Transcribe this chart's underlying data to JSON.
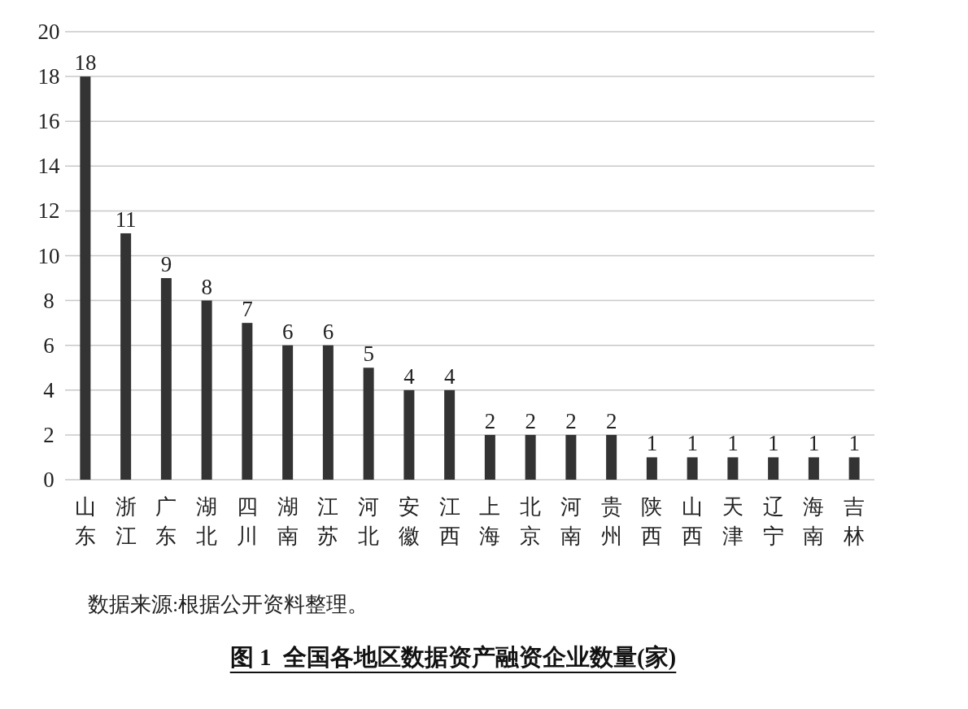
{
  "chart_data": {
    "type": "bar",
    "title": "图 1  全国各地区数据资产融资企业数量(家)",
    "annotations": [
      "数据来源:根据公开资料整理。"
    ],
    "categories": [
      "山东",
      "浙江",
      "广东",
      "湖北",
      "四川",
      "湖南",
      "江苏",
      "河北",
      "安徽",
      "江西",
      "上海",
      "北京",
      "河南",
      "贵州",
      "陕西",
      "山西",
      "天津",
      "辽宁",
      "海南",
      "吉林"
    ],
    "values": [
      18,
      11,
      9,
      8,
      7,
      6,
      6,
      5,
      4,
      4,
      2,
      2,
      2,
      2,
      1,
      1,
      1,
      1,
      1,
      1
    ],
    "color": "#333333",
    "ylim": [
      0,
      20
    ],
    "yticks": [
      0,
      2,
      4,
      6,
      8,
      10,
      12,
      14,
      16,
      18,
      20
    ],
    "grid": "y",
    "data_labels": true
  }
}
